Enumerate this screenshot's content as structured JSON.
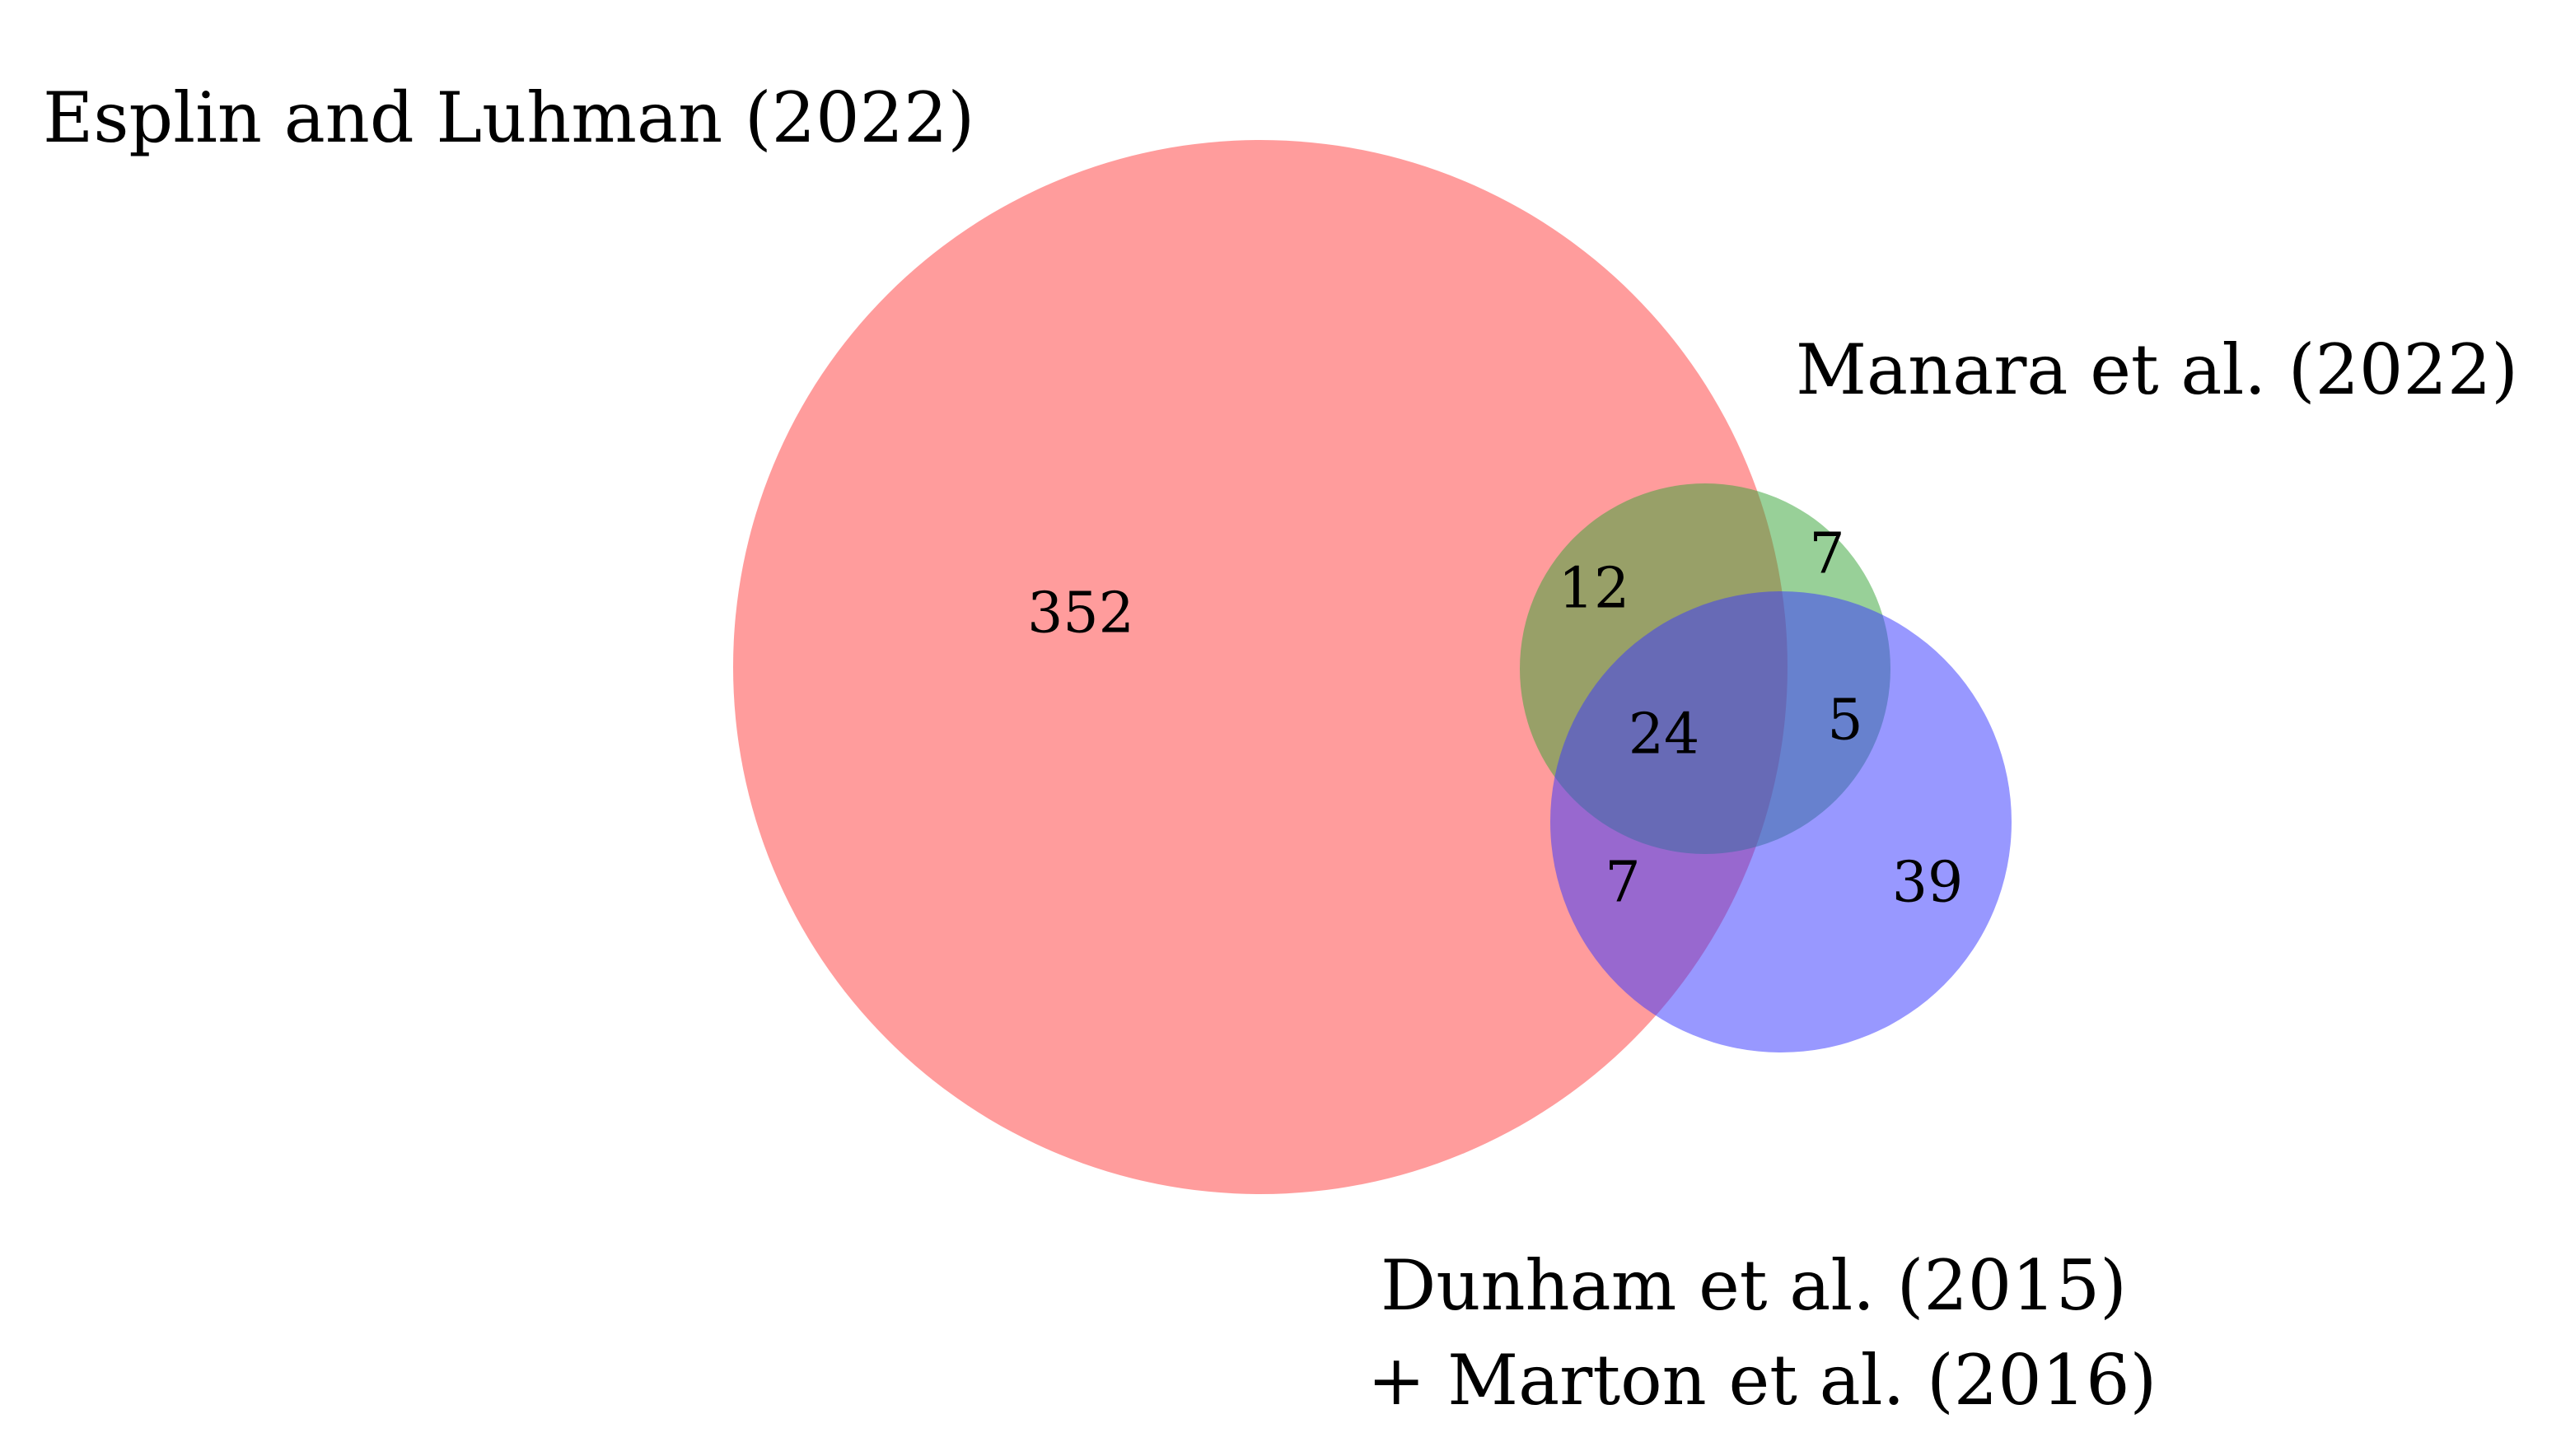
{
  "sets": {
    "esplin": {
      "label": "Esplin and Luhman (2022)",
      "color": "#ff4242"
    },
    "manara": {
      "label": "Manara et al. (2022)",
      "color": "#3aa43a"
    },
    "dunham": {
      "label_line1": "Dunham et al. (2015)",
      "label_line2": "+ Marton et al. (2016)",
      "color": "#3a3aff"
    }
  },
  "regions": {
    "esplin_only": "352",
    "esplin_manara": "12",
    "manara_only": "7",
    "all_three": "24",
    "manara_dunham": "5",
    "esplin_dunham": "7",
    "dunham_only": "39"
  }
}
